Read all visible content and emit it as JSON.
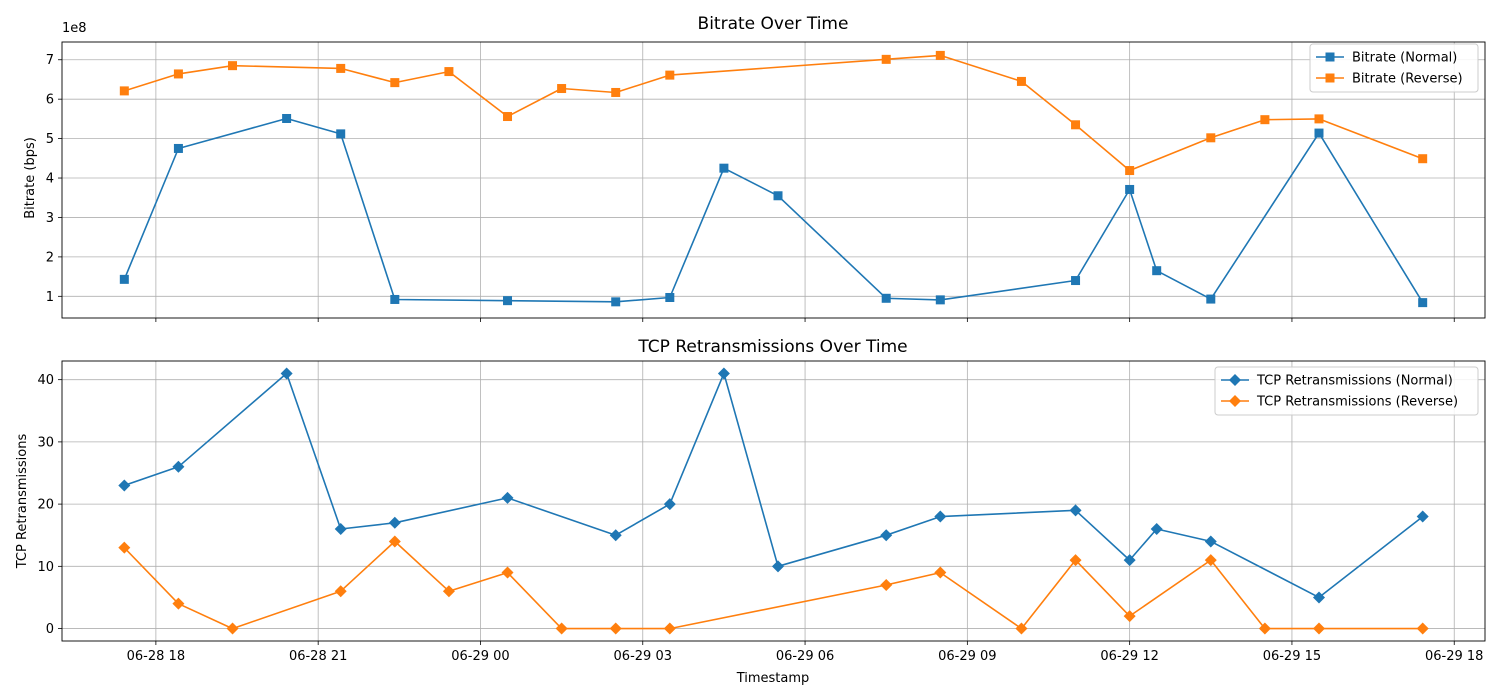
{
  "chart_data": [
    {
      "type": "line",
      "title": "Bitrate Over Time",
      "xlabel": "",
      "ylabel": "Bitrate (bps)",
      "y_scale_label": "1e8",
      "ylim": [
        45000000,
        745000000
      ],
      "y_ticks": [
        100000000,
        200000000,
        300000000,
        400000000,
        500000000,
        600000000,
        700000000
      ],
      "y_tick_labels": [
        "1",
        "2",
        "3",
        "4",
        "5",
        "6",
        "7"
      ],
      "grid": true,
      "legend": "top-right",
      "marker": "square",
      "series": [
        {
          "name": "Bitrate (Normal)",
          "color": "#1f77b4",
          "points": [
            [
              "2024-06-28T17:25",
              143000000
            ],
            [
              "2024-06-28T18:25",
              475000000
            ],
            [
              "2024-06-28T20:25",
              551000000
            ],
            [
              "2024-06-28T21:25",
              512000000
            ],
            [
              "2024-06-28T22:25",
              92000000
            ],
            [
              "2024-06-29T00:30",
              89000000
            ],
            [
              "2024-06-29T02:30",
              86000000
            ],
            [
              "2024-06-29T03:30",
              97000000
            ],
            [
              "2024-06-29T04:30",
              425000000
            ],
            [
              "2024-06-29T05:30",
              355000000
            ],
            [
              "2024-06-29T07:30",
              95000000
            ],
            [
              "2024-06-29T08:30",
              91000000
            ],
            [
              "2024-06-29T11:00",
              140000000
            ],
            [
              "2024-06-29T12:00",
              371000000
            ],
            [
              "2024-06-29T12:30",
              165000000
            ],
            [
              "2024-06-29T13:30",
              93000000
            ],
            [
              "2024-06-29T15:30",
              514000000
            ],
            [
              "2024-06-29T17:25",
              84000000
            ]
          ]
        },
        {
          "name": "Bitrate (Reverse)",
          "color": "#ff7f0e",
          "points": [
            [
              "2024-06-28T17:25",
              621000000
            ],
            [
              "2024-06-28T18:25",
              664000000
            ],
            [
              "2024-06-28T19:25",
              685000000
            ],
            [
              "2024-06-28T21:25",
              678000000
            ],
            [
              "2024-06-28T22:25",
              642000000
            ],
            [
              "2024-06-28T23:25",
              670000000
            ],
            [
              "2024-06-29T00:30",
              556000000
            ],
            [
              "2024-06-29T01:30",
              627000000
            ],
            [
              "2024-06-29T02:30",
              617000000
            ],
            [
              "2024-06-29T03:30",
              661000000
            ],
            [
              "2024-06-29T07:30",
              701000000
            ],
            [
              "2024-06-29T08:30",
              711000000
            ],
            [
              "2024-06-29T10:00",
              645000000
            ],
            [
              "2024-06-29T11:00",
              535000000
            ],
            [
              "2024-06-29T12:00",
              419000000
            ],
            [
              "2024-06-29T13:30",
              502000000
            ],
            [
              "2024-06-29T14:30",
              548000000
            ],
            [
              "2024-06-29T15:30",
              550000000
            ],
            [
              "2024-06-29T17:25",
              449000000
            ]
          ]
        }
      ]
    },
    {
      "type": "line",
      "title": "TCP Retransmissions Over Time",
      "xlabel": "Timestamp",
      "ylabel": "TCP Retransmissions",
      "ylim": [
        -2,
        43
      ],
      "y_ticks": [
        0,
        10,
        20,
        30,
        40
      ],
      "y_tick_labels": [
        "0",
        "10",
        "20",
        "30",
        "40"
      ],
      "grid": true,
      "legend": "top-right",
      "marker": "diamond",
      "x_ticks": [
        "2024-06-28T18:00",
        "2024-06-28T21:00",
        "2024-06-29T00:00",
        "2024-06-29T03:00",
        "2024-06-29T06:00",
        "2024-06-29T09:00",
        "2024-06-29T12:00",
        "2024-06-29T15:00",
        "2024-06-29T18:00"
      ],
      "x_tick_labels": [
        "06-28 18",
        "06-28 21",
        "06-29 00",
        "06-29 03",
        "06-29 06",
        "06-29 09",
        "06-29 12",
        "06-29 15",
        "06-29 18"
      ],
      "series": [
        {
          "name": "TCP Retransmissions (Normal)",
          "color": "#1f77b4",
          "points": [
            [
              "2024-06-28T17:25",
              23
            ],
            [
              "2024-06-28T18:25",
              26
            ],
            [
              "2024-06-28T20:25",
              41
            ],
            [
              "2024-06-28T21:25",
              16
            ],
            [
              "2024-06-28T22:25",
              17
            ],
            [
              "2024-06-29T00:30",
              21
            ],
            [
              "2024-06-29T02:30",
              15
            ],
            [
              "2024-06-29T03:30",
              20
            ],
            [
              "2024-06-29T04:30",
              41
            ],
            [
              "2024-06-29T05:30",
              10
            ],
            [
              "2024-06-29T07:30",
              15
            ],
            [
              "2024-06-29T08:30",
              18
            ],
            [
              "2024-06-29T11:00",
              19
            ],
            [
              "2024-06-29T12:00",
              11
            ],
            [
              "2024-06-29T12:30",
              16
            ],
            [
              "2024-06-29T13:30",
              14
            ],
            [
              "2024-06-29T15:30",
              5
            ],
            [
              "2024-06-29T17:25",
              18
            ]
          ]
        },
        {
          "name": "TCP Retransmissions (Reverse)",
          "color": "#ff7f0e",
          "points": [
            [
              "2024-06-28T17:25",
              13
            ],
            [
              "2024-06-28T18:25",
              4
            ],
            [
              "2024-06-28T19:25",
              0
            ],
            [
              "2024-06-28T21:25",
              6
            ],
            [
              "2024-06-28T22:25",
              14
            ],
            [
              "2024-06-28T23:25",
              6
            ],
            [
              "2024-06-29T00:30",
              9
            ],
            [
              "2024-06-29T01:30",
              0
            ],
            [
              "2024-06-29T02:30",
              0
            ],
            [
              "2024-06-29T03:30",
              0
            ],
            [
              "2024-06-29T07:30",
              7
            ],
            [
              "2024-06-29T08:30",
              9
            ],
            [
              "2024-06-29T10:00",
              0
            ],
            [
              "2024-06-29T11:00",
              11
            ],
            [
              "2024-06-29T12:00",
              2
            ],
            [
              "2024-06-29T13:30",
              11
            ],
            [
              "2024-06-29T14:30",
              0
            ],
            [
              "2024-06-29T15:30",
              0
            ],
            [
              "2024-06-29T17:25",
              0
            ]
          ]
        }
      ]
    }
  ]
}
